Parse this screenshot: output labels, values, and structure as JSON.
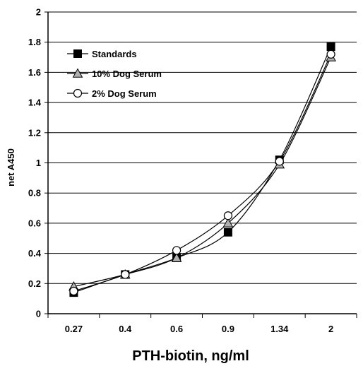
{
  "chart_data": {
    "type": "line",
    "title": "",
    "xlabel": "PTH-biotin, ng/ml",
    "ylabel": "net A450",
    "categories": [
      "0.27",
      "0.4",
      "0.6",
      "0.9",
      "1.34",
      "2"
    ],
    "ylim": [
      0,
      2
    ],
    "yticks": [
      "0",
      "0.2",
      "0.4",
      "0.6",
      "0.8",
      "1",
      "1.2",
      "1.4",
      "1.6",
      "1.8",
      "2"
    ],
    "grid": true,
    "legend_position": "top-left",
    "series": [
      {
        "name": "Standards",
        "marker": "square-filled",
        "values": [
          0.14,
          0.26,
          0.37,
          0.54,
          1.02,
          1.77
        ]
      },
      {
        "name": "10% Dog Serum",
        "marker": "triangle-gray",
        "values": [
          0.18,
          0.26,
          0.37,
          0.6,
          0.99,
          1.7
        ]
      },
      {
        "name": "2% Dog Serum",
        "marker": "circle-open",
        "values": [
          0.15,
          0.26,
          0.42,
          0.65,
          1.01,
          1.72
        ]
      }
    ],
    "colors": {
      "line": "#000000",
      "triangle_fill": "#b0b0b0",
      "circle_fill": "#ffffff",
      "square_fill": "#000000"
    }
  }
}
